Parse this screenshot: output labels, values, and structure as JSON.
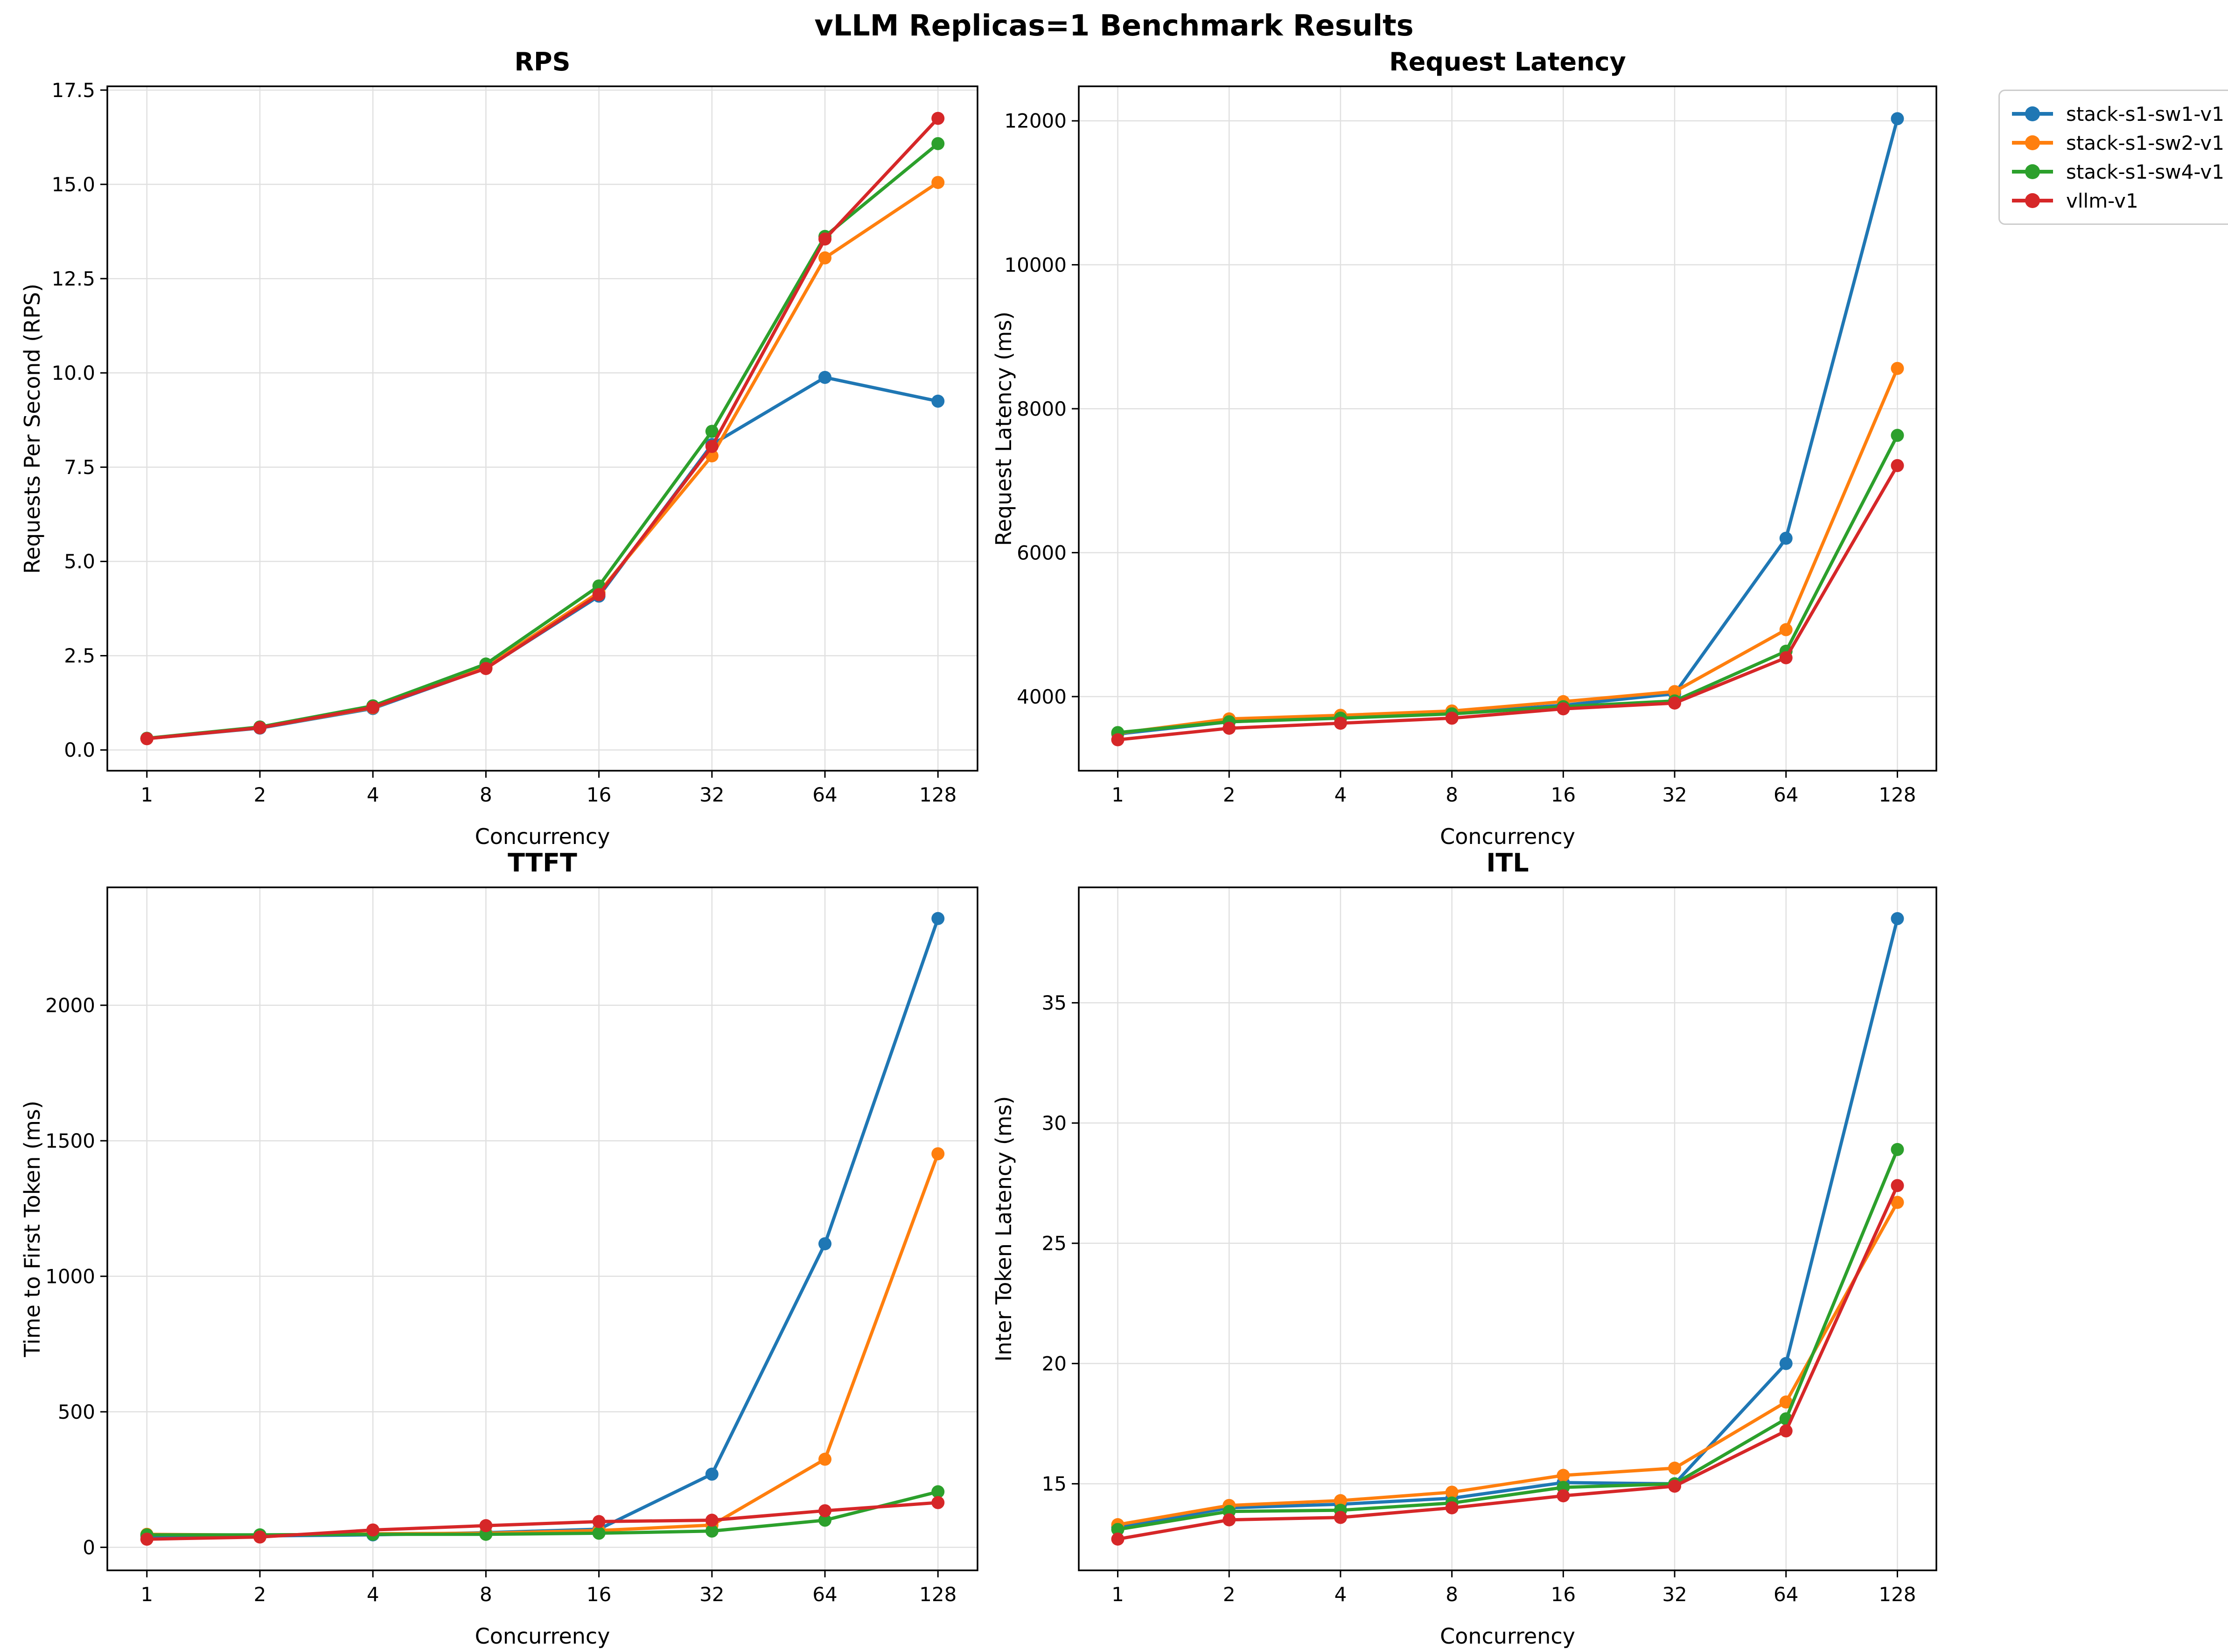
{
  "figure": {
    "suptitle": "vLLM Replicas=1 Benchmark Results"
  },
  "legend": {
    "position": "outside-top-right",
    "items": [
      {
        "label": "stack-s1-sw1-v1",
        "color": "#1f77b4"
      },
      {
        "label": "stack-s1-sw2-v1",
        "color": "#ff7f0e"
      },
      {
        "label": "stack-s1-sw4-v1",
        "color": "#2ca02c"
      },
      {
        "label": "vllm-v1",
        "color": "#d62728"
      }
    ]
  },
  "chart_data": [
    {
      "id": "rps",
      "type": "line",
      "title": "RPS",
      "xlabel": "Concurrency",
      "ylabel": "Requests Per Second (RPS)",
      "xscale": "log2",
      "grid": true,
      "x": [
        1,
        2,
        4,
        8,
        16,
        32,
        64,
        128
      ],
      "xtick_labels": [
        "1",
        "2",
        "4",
        "8",
        "16",
        "32",
        "64",
        "128"
      ],
      "ylim": [
        -0.55,
        17.6
      ],
      "yticks": [
        0,
        2.5,
        5,
        7.5,
        10,
        12.5,
        15,
        17.5
      ],
      "ytick_labels": [
        "0.0",
        "2.5",
        "5.0",
        "7.5",
        "10.0",
        "12.5",
        "15.0",
        "17.5"
      ],
      "series": [
        {
          "name": "stack-s1-sw1-v1",
          "color": "#1f77b4",
          "values": [
            0.3,
            0.58,
            1.1,
            2.17,
            4.08,
            8.1,
            9.88,
            9.25
          ]
        },
        {
          "name": "stack-s1-sw2-v1",
          "color": "#ff7f0e",
          "values": [
            0.3,
            0.59,
            1.12,
            2.2,
            4.18,
            7.8,
            13.05,
            15.05
          ]
        },
        {
          "name": "stack-s1-sw4-v1",
          "color": "#2ca02c",
          "values": [
            0.31,
            0.61,
            1.17,
            2.28,
            4.35,
            8.45,
            13.62,
            16.08
          ]
        },
        {
          "name": "vllm-v1",
          "color": "#d62728",
          "values": [
            0.3,
            0.59,
            1.13,
            2.16,
            4.12,
            8.05,
            13.55,
            16.75
          ]
        }
      ]
    },
    {
      "id": "request-latency",
      "type": "line",
      "title": "Request Latency",
      "xlabel": "Concurrency",
      "ylabel": "Request Latency (ms)",
      "xscale": "log2",
      "grid": true,
      "x": [
        1,
        2,
        4,
        8,
        16,
        32,
        64,
        128
      ],
      "xtick_labels": [
        "1",
        "2",
        "4",
        "8",
        "16",
        "32",
        "64",
        "128"
      ],
      "ylim": [
        2970,
        12480
      ],
      "yticks": [
        4000,
        6000,
        8000,
        10000,
        12000
      ],
      "ytick_labels": [
        "4000",
        "6000",
        "8000",
        "10000",
        "12000"
      ],
      "series": [
        {
          "name": "stack-s1-sw1-v1",
          "color": "#1f77b4",
          "values": [
            3480,
            3650,
            3710,
            3770,
            3880,
            4040,
            6200,
            12030
          ]
        },
        {
          "name": "stack-s1-sw2-v1",
          "color": "#ff7f0e",
          "values": [
            3490,
            3690,
            3740,
            3800,
            3930,
            4070,
            4930,
            8560
          ]
        },
        {
          "name": "stack-s1-sw4-v1",
          "color": "#2ca02c",
          "values": [
            3500,
            3650,
            3700,
            3760,
            3860,
            3940,
            4630,
            7630
          ]
        },
        {
          "name": "vllm-v1",
          "color": "#d62728",
          "values": [
            3400,
            3560,
            3630,
            3700,
            3830,
            3910,
            4540,
            7210
          ]
        }
      ]
    },
    {
      "id": "ttft",
      "type": "line",
      "title": "TTFT",
      "xlabel": "Concurrency",
      "ylabel": "Time to First Token (ms)",
      "xscale": "log2",
      "grid": true,
      "x": [
        1,
        2,
        4,
        8,
        16,
        32,
        64,
        128
      ],
      "xtick_labels": [
        "1",
        "2",
        "4",
        "8",
        "16",
        "32",
        "64",
        "128"
      ],
      "ylim": [
        -85,
        2435
      ],
      "yticks": [
        0,
        500,
        1000,
        1500,
        2000
      ],
      "ytick_labels": [
        "0",
        "500",
        "1000",
        "1500",
        "2000"
      ],
      "series": [
        {
          "name": "stack-s1-sw1-v1",
          "color": "#1f77b4",
          "values": [
            42,
            42,
            46,
            54,
            67,
            270,
            1120,
            2320
          ]
        },
        {
          "name": "stack-s1-sw2-v1",
          "color": "#ff7f0e",
          "values": [
            48,
            45,
            50,
            52,
            62,
            82,
            325,
            1452
          ]
        },
        {
          "name": "stack-s1-sw4-v1",
          "color": "#2ca02c",
          "values": [
            46,
            46,
            48,
            48,
            52,
            60,
            100,
            205
          ]
        },
        {
          "name": "vllm-v1",
          "color": "#d62728",
          "values": [
            30,
            38,
            64,
            80,
            95,
            100,
            135,
            165
          ]
        }
      ]
    },
    {
      "id": "itl",
      "type": "line",
      "title": "ITL",
      "xlabel": "Concurrency",
      "ylabel": "Inter Token Latency (ms)",
      "xscale": "log2",
      "grid": true,
      "x": [
        1,
        2,
        4,
        8,
        16,
        32,
        64,
        128
      ],
      "xtick_labels": [
        "1",
        "2",
        "4",
        "8",
        "16",
        "32",
        "64",
        "128"
      ],
      "ylim": [
        11.4,
        39.8
      ],
      "yticks": [
        15,
        20,
        25,
        30,
        35
      ],
      "ytick_labels": [
        "15",
        "20",
        "25",
        "30",
        "35"
      ],
      "series": [
        {
          "name": "stack-s1-sw1-v1",
          "color": "#1f77b4",
          "values": [
            13.2,
            14.0,
            14.15,
            14.4,
            15.05,
            15.0,
            20.0,
            38.5
          ]
        },
        {
          "name": "stack-s1-sw2-v1",
          "color": "#ff7f0e",
          "values": [
            13.3,
            14.1,
            14.3,
            14.65,
            15.35,
            15.65,
            18.4,
            26.7
          ]
        },
        {
          "name": "stack-s1-sw4-v1",
          "color": "#2ca02c",
          "values": [
            13.1,
            13.85,
            13.9,
            14.2,
            14.85,
            15.0,
            17.7,
            28.9
          ]
        },
        {
          "name": "vllm-v1",
          "color": "#d62728",
          "values": [
            12.7,
            13.5,
            13.6,
            14.0,
            14.5,
            14.9,
            17.2,
            27.4
          ]
        }
      ]
    }
  ]
}
